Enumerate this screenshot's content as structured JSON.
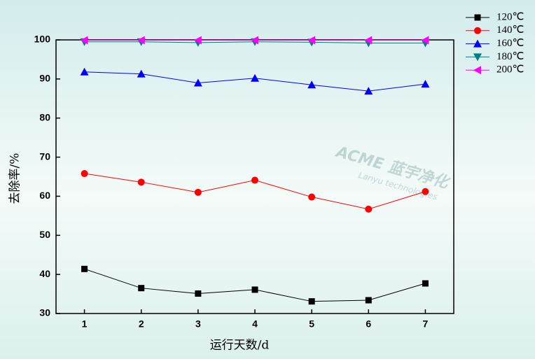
{
  "chart_data": {
    "type": "line",
    "x_label": "运行天数/d",
    "y_label": "去除率/%",
    "annotations": [
      "ACME 蓝宇净化",
      "Lanyu technologies"
    ],
    "x": [
      1,
      2,
      3,
      4,
      5,
      6,
      7
    ],
    "xlim": [
      0.5,
      7.5
    ],
    "xticks": [
      1,
      2,
      3,
      4,
      5,
      6,
      7
    ],
    "ylim": [
      30,
      100
    ],
    "yticks": [
      30,
      40,
      50,
      60,
      70,
      80,
      90,
      100
    ],
    "legend": "top-right",
    "series": [
      {
        "name": "120℃",
        "color": "#000000",
        "marker": "square",
        "values": [
          41.4,
          36.5,
          35.1,
          36.1,
          33.1,
          33.4,
          37.7
        ]
      },
      {
        "name": "140℃",
        "color": "#ff0000",
        "marker": "circle",
        "values": [
          65.8,
          63.6,
          61.0,
          64.1,
          59.8,
          56.7,
          61.2
        ]
      },
      {
        "name": "160℃",
        "color": "#0000ff",
        "marker": "triangle-up",
        "values": [
          91.8,
          91.3,
          89.0,
          90.2,
          88.5,
          86.9,
          88.7
        ]
      },
      {
        "name": "180℃",
        "color": "#008080",
        "marker": "triangle-down",
        "values": [
          99.5,
          99.5,
          99.3,
          99.5,
          99.4,
          99.2,
          99.2
        ]
      },
      {
        "name": "200℃",
        "color": "#ff00ff",
        "marker": "triangle-left",
        "values": [
          99.9,
          99.9,
          99.9,
          99.9,
          99.9,
          99.9,
          99.9
        ]
      }
    ]
  }
}
